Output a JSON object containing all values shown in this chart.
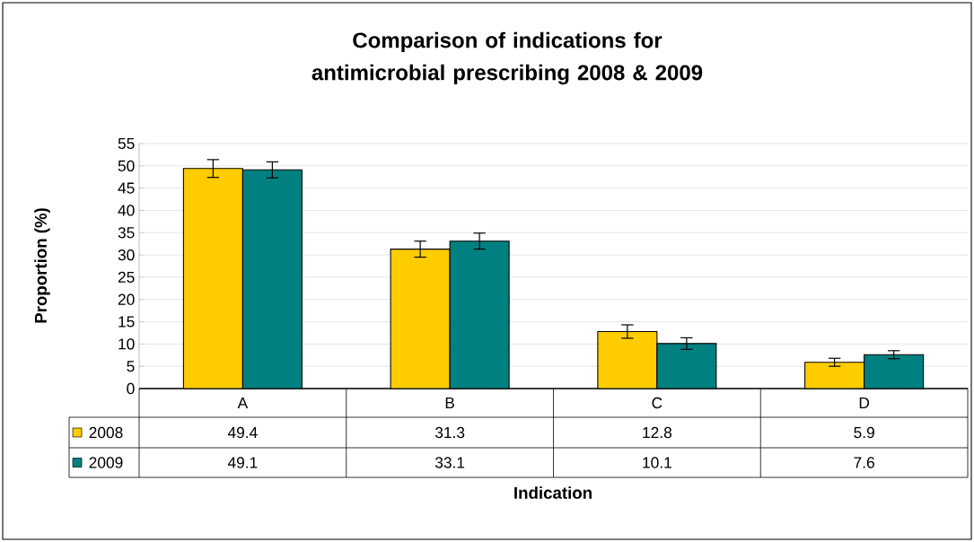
{
  "chart_data": {
    "type": "bar",
    "title": "Comparison of indications for antimicrobial prescribing 2008 & 2009",
    "xlabel": "Indication",
    "ylabel": "Proportion (%)",
    "categories": [
      "A",
      "B",
      "C",
      "D"
    ],
    "series": [
      {
        "name": "2008",
        "color": "#ffcc00",
        "values": [
          49.4,
          31.3,
          12.8,
          5.9
        ],
        "errors": [
          2,
          1.8,
          1.5,
          0.9
        ]
      },
      {
        "name": "2009",
        "color": "#008080",
        "values": [
          49.1,
          33.1,
          10.1,
          7.6
        ],
        "errors": [
          1.8,
          1.8,
          1.3,
          0.9
        ]
      }
    ],
    "ylim": [
      0,
      55
    ],
    "yticks": [
      0,
      5,
      10,
      15,
      20,
      25,
      30,
      35,
      40,
      45,
      50,
      55
    ],
    "grid": "y",
    "legend": "bottom",
    "data_labels": true
  }
}
